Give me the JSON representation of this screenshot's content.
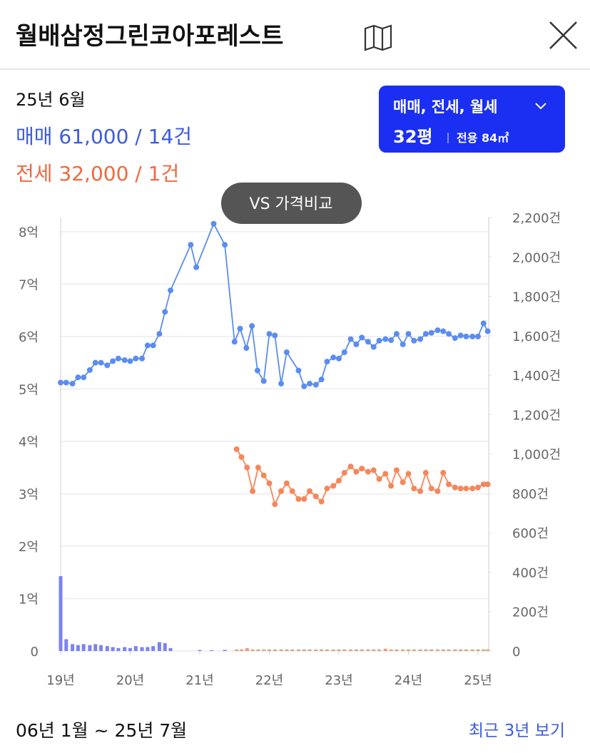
{
  "header": {
    "title": "월배삼정그린코아포레스트"
  },
  "summary": {
    "date": "25년 6월",
    "sale": "매매 61,000 / 14건",
    "jeonse": "전세 32,000 / 1건"
  },
  "filter": {
    "types": "매매, 전세, 월세",
    "size": "32평",
    "area": "전용 84㎡"
  },
  "compare_button": "VS 가격비교",
  "chart_data": {
    "type": "combo",
    "xlim": [
      19,
      25.154
    ],
    "xticks": [
      {
        "value": 19,
        "label": "19년"
      },
      {
        "value": 20,
        "label": "20년"
      },
      {
        "value": 21,
        "label": "21년"
      },
      {
        "value": 22,
        "label": "22년"
      },
      {
        "value": 23,
        "label": "23년"
      },
      {
        "value": 24,
        "label": "24년"
      },
      {
        "value": 25,
        "label": "25년"
      }
    ],
    "ylim": [
      0,
      8.27
    ],
    "yticks": [
      0,
      {
        "value": 1,
        "label": "1억"
      },
      {
        "value": 2,
        "label": "2억"
      },
      {
        "value": 3,
        "label": "3억"
      },
      {
        "value": 4,
        "label": "4억"
      },
      {
        "value": 5,
        "label": "5억"
      },
      {
        "value": 6,
        "label": "6억"
      },
      {
        "value": 7,
        "label": "7억"
      },
      {
        "value": 8,
        "label": "8억"
      }
    ],
    "y2lim": [
      0,
      2200
    ],
    "y2ticks": [
      0,
      {
        "value": 200,
        "label": "200건"
      },
      {
        "value": 400,
        "label": "400건"
      },
      {
        "value": 600,
        "label": "600건"
      },
      {
        "value": 800,
        "label": "800건"
      },
      {
        "value": 1000,
        "label": "1,000건"
      },
      {
        "value": 1200,
        "label": "1,200건"
      },
      {
        "value": 1400,
        "label": "1,400건"
      },
      {
        "value": 1600,
        "label": "1,600건"
      },
      {
        "value": 1800,
        "label": "1,800건"
      },
      {
        "value": 2000,
        "label": "2,000건"
      },
      {
        "value": 2200,
        "label": "2,200건"
      }
    ],
    "grid": true,
    "series": [
      {
        "type": "bar",
        "axis": "y2",
        "color": "#7b83f2",
        "x": [
          19.0,
          19.08,
          19.17,
          19.25,
          19.33,
          19.42,
          19.5,
          19.58,
          19.67,
          19.75,
          19.83,
          19.92,
          20.0,
          20.08,
          20.17,
          20.25,
          20.33,
          20.42,
          20.5,
          20.58,
          21.0,
          21.17,
          21.36
        ],
        "values": [
          380,
          60,
          35,
          30,
          35,
          30,
          35,
          30,
          25,
          20,
          15,
          20,
          15,
          25,
          20,
          20,
          25,
          45,
          40,
          15,
          5,
          4,
          6
        ]
      },
      {
        "type": "bar",
        "axis": "y2",
        "color": "#7cc86f",
        "x": [
          21.53,
          21.6,
          21.68,
          21.76,
          21.84,
          21.92,
          22.0,
          22.08,
          22.17,
          22.25,
          22.33,
          22.42,
          22.5,
          22.58,
          22.67,
          22.75,
          22.83,
          22.92,
          23.0,
          23.08,
          23.17,
          23.25,
          23.33,
          23.42,
          23.5,
          23.58,
          23.67,
          23.75,
          23.83,
          23.92,
          24.0,
          24.08,
          24.17,
          24.25,
          24.33,
          24.42,
          24.5,
          24.58,
          24.67,
          24.75,
          24.83,
          24.92,
          25.0,
          25.08,
          25.14
        ],
        "values": [
          8,
          8,
          8,
          8,
          8,
          8,
          8,
          8,
          8,
          8,
          8,
          8,
          8,
          8,
          8,
          8,
          8,
          8,
          8,
          8,
          8,
          8,
          8,
          8,
          8,
          8,
          8,
          8,
          8,
          8,
          8,
          8,
          8,
          8,
          8,
          8,
          8,
          8,
          8,
          8,
          8,
          8,
          8,
          8,
          8
        ]
      },
      {
        "type": "bar",
        "axis": "y2",
        "color": "#f39a86",
        "x": [
          21.53,
          21.6,
          21.68,
          21.76,
          21.84,
          21.92,
          22.0,
          22.08,
          22.17,
          22.25,
          22.33,
          22.42,
          22.5,
          22.58,
          22.67,
          22.75,
          22.83,
          22.92,
          23.0,
          23.08,
          23.17,
          23.25,
          23.33,
          23.42,
          23.5,
          23.58,
          23.67,
          23.75,
          23.83,
          23.92,
          24.0,
          24.08,
          24.17,
          24.25,
          24.33,
          24.42,
          24.5,
          24.58,
          24.67,
          24.75,
          24.83,
          24.92,
          25.0,
          25.08,
          25.14
        ],
        "values": [
          6,
          8,
          15,
          6,
          6,
          6,
          6,
          6,
          6,
          6,
          6,
          6,
          6,
          6,
          6,
          6,
          6,
          6,
          6,
          6,
          6,
          6,
          6,
          6,
          6,
          6,
          12,
          6,
          6,
          6,
          6,
          6,
          6,
          6,
          6,
          6,
          6,
          6,
          6,
          6,
          6,
          6,
          6,
          6,
          6
        ]
      },
      {
        "type": "line",
        "color": "#5b8def",
        "x": [
          19.0,
          19.08,
          19.17,
          19.25,
          19.33,
          19.42,
          19.5,
          19.58,
          19.67,
          19.75,
          19.83,
          19.92,
          20.0,
          20.08,
          20.17,
          20.25,
          20.33,
          20.42,
          20.5,
          20.58,
          20.87,
          20.95,
          21.2,
          21.36,
          21.5,
          21.58,
          21.67,
          21.75,
          21.83,
          21.92,
          22.0,
          22.08,
          22.17,
          22.25,
          22.42,
          22.5,
          22.58,
          22.67,
          22.75,
          22.83,
          22.92,
          23.0,
          23.08,
          23.17,
          23.25,
          23.33,
          23.42,
          23.5,
          23.58,
          23.67,
          23.75,
          23.83,
          23.92,
          24.0,
          24.08,
          24.17,
          24.25,
          24.33,
          24.42,
          24.5,
          24.58,
          24.67,
          24.75,
          24.83,
          24.92,
          25.0,
          25.08,
          25.14
        ],
        "values": [
          5.12,
          5.12,
          5.1,
          5.22,
          5.22,
          5.36,
          5.5,
          5.5,
          5.45,
          5.53,
          5.58,
          5.55,
          5.53,
          5.58,
          5.58,
          5.83,
          5.83,
          6.05,
          6.47,
          6.88,
          7.75,
          7.32,
          8.15,
          7.75,
          5.9,
          6.15,
          5.78,
          6.2,
          5.35,
          5.15,
          6.05,
          6.02,
          5.1,
          5.7,
          5.35,
          5.05,
          5.1,
          5.08,
          5.18,
          5.52,
          5.6,
          5.58,
          5.7,
          5.95,
          5.85,
          5.98,
          5.9,
          5.8,
          5.92,
          5.95,
          5.93,
          6.05,
          5.85,
          6.05,
          5.92,
          5.95,
          6.05,
          6.07,
          6.12,
          6.1,
          6.05,
          5.97,
          6.02,
          6.0,
          6.0,
          6.0,
          6.25,
          6.1
        ]
      },
      {
        "type": "line",
        "color": "#f4875c",
        "x": [
          21.53,
          21.6,
          21.68,
          21.76,
          21.84,
          21.92,
          22.0,
          22.08,
          22.17,
          22.25,
          22.33,
          22.42,
          22.5,
          22.58,
          22.67,
          22.75,
          22.83,
          22.92,
          23.0,
          23.08,
          23.17,
          23.25,
          23.33,
          23.42,
          23.5,
          23.58,
          23.67,
          23.75,
          23.83,
          23.92,
          24.0,
          24.08,
          24.17,
          24.25,
          24.33,
          24.42,
          24.5,
          24.58,
          24.67,
          24.75,
          24.83,
          24.92,
          25.0,
          25.08,
          25.14
        ],
        "values": [
          3.85,
          3.7,
          3.5,
          3.05,
          3.5,
          3.35,
          3.2,
          2.8,
          3.05,
          3.2,
          3.05,
          2.9,
          2.9,
          3.05,
          2.95,
          2.85,
          3.1,
          3.15,
          3.25,
          3.4,
          3.52,
          3.42,
          3.48,
          3.42,
          3.45,
          3.28,
          3.38,
          3.15,
          3.45,
          3.22,
          3.38,
          3.1,
          3.05,
          3.4,
          3.1,
          3.05,
          3.4,
          3.18,
          3.12,
          3.1,
          3.1,
          3.1,
          3.12,
          3.18,
          3.18
        ]
      }
    ]
  },
  "footer": {
    "range": "06년 1월 ~ 25년 7월",
    "link": "최근 3년 보기"
  }
}
